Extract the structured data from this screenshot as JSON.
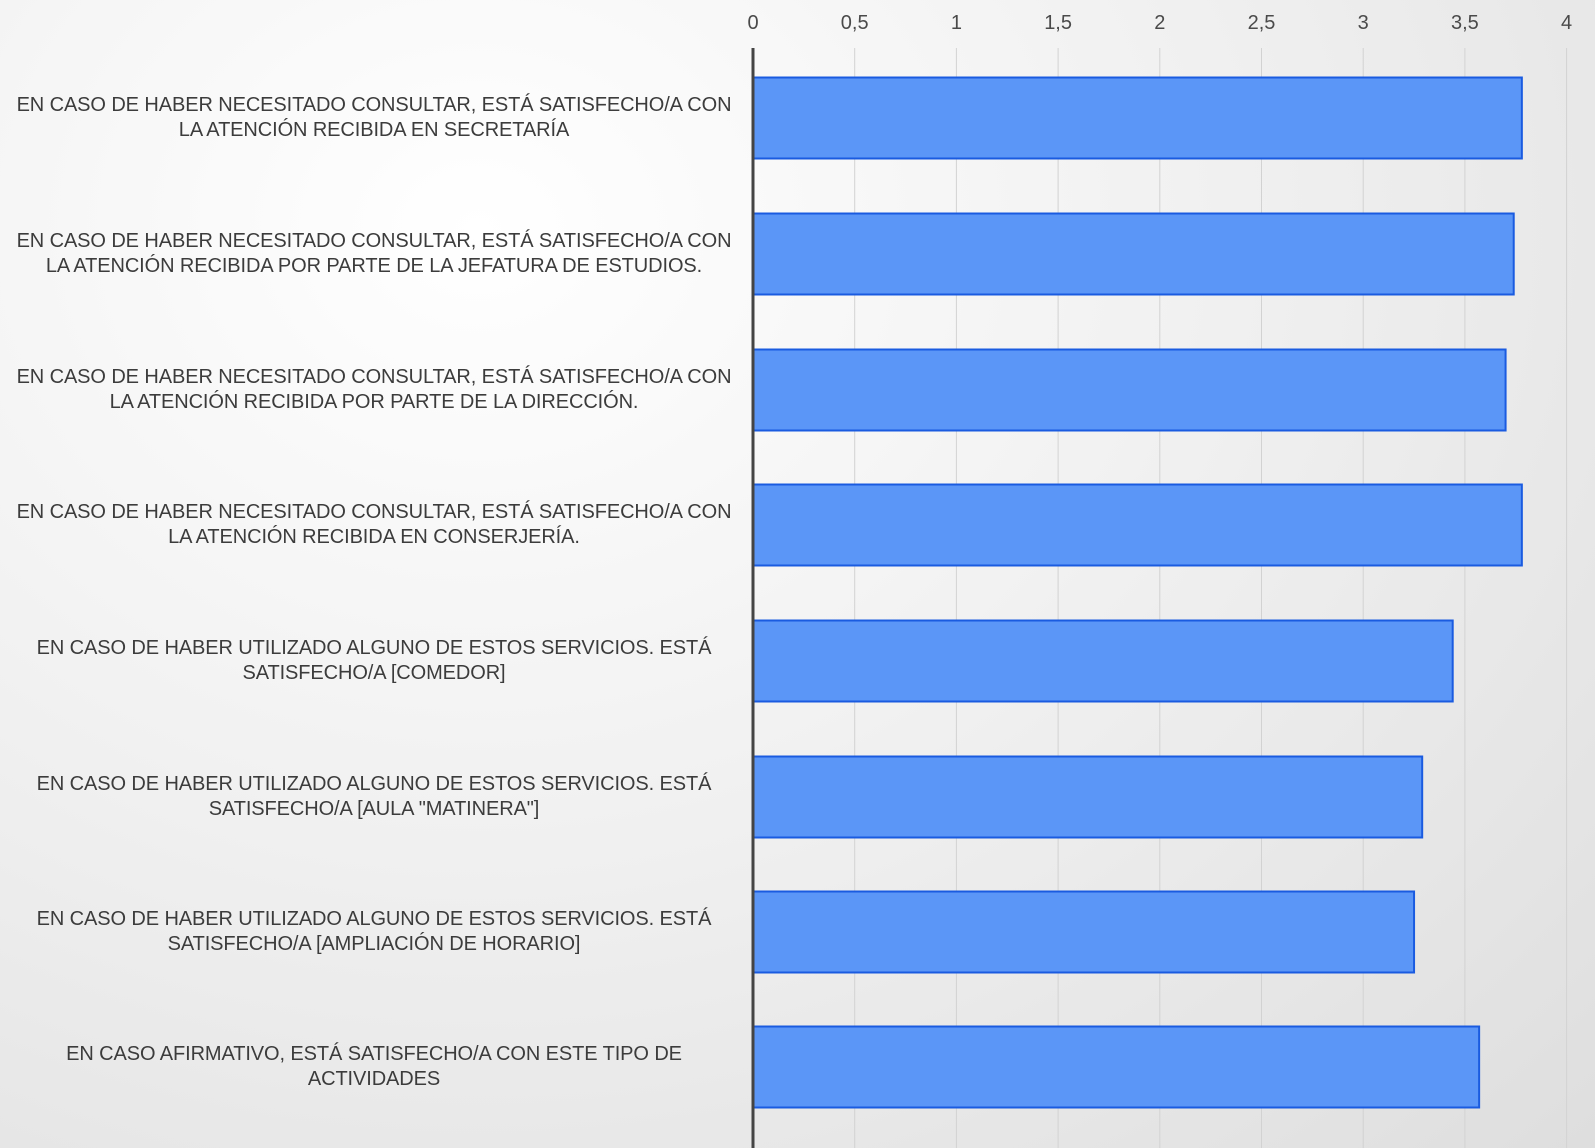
{
  "chart_data": {
    "type": "bar",
    "orientation": "horizontal",
    "title": "",
    "xlabel": "",
    "ylabel": "",
    "xlim": [
      0,
      4
    ],
    "x_ticks": [
      "0",
      "0,5",
      "1",
      "1,5",
      "2",
      "2,5",
      "3",
      "3,5",
      "4"
    ],
    "x_axis_position": "top",
    "grid": true,
    "legend": "none",
    "bar_color": "#5b96f7",
    "bar_border_color": "#1a5be0",
    "categories": [
      "EN CASO DE HABER NECESITADO CONSULTAR, ESTÁ SATISFECHO/A CON LA ATENCIÓN RECIBIDA EN SECRETARÍA",
      "EN CASO DE HABER NECESITADO CONSULTAR, ESTÁ SATISFECHO/A CON LA ATENCIÓN RECIBIDA POR PARTE DE LA JEFATURA DE ESTUDIOS.",
      "EN CASO DE HABER NECESITADO CONSULTAR, ESTÁ SATISFECHO/A CON LA ATENCIÓN RECIBIDA POR PARTE DE LA DIRECCIÓN.",
      "EN CASO DE HABER NECESITADO CONSULTAR, ESTÁ SATISFECHO/A CON LA ATENCIÓN RECIBIDA EN CONSERJERÍA.",
      "EN CASO DE HABER UTILIZADO ALGUNO DE ESTOS SERVICIOS. ESTÁ SATISFECHO/A [COMEDOR]",
      "EN CASO DE HABER UTILIZADO ALGUNO DE ESTOS SERVICIOS. ESTÁ SATISFECHO/A [AULA \"MATINERA\"]",
      "EN CASO DE HABER UTILIZADO ALGUNO DE ESTOS SERVICIOS. ESTÁ SATISFECHO/A [AMPLIACIÓN DE HORARIO]",
      "EN CASO AFIRMATIVO, ESTÁ SATISFECHO/A CON ESTE TIPO DE ACTIVIDADES"
    ],
    "values": [
      3.78,
      3.74,
      3.7,
      3.78,
      3.44,
      3.29,
      3.25,
      3.57
    ]
  }
}
